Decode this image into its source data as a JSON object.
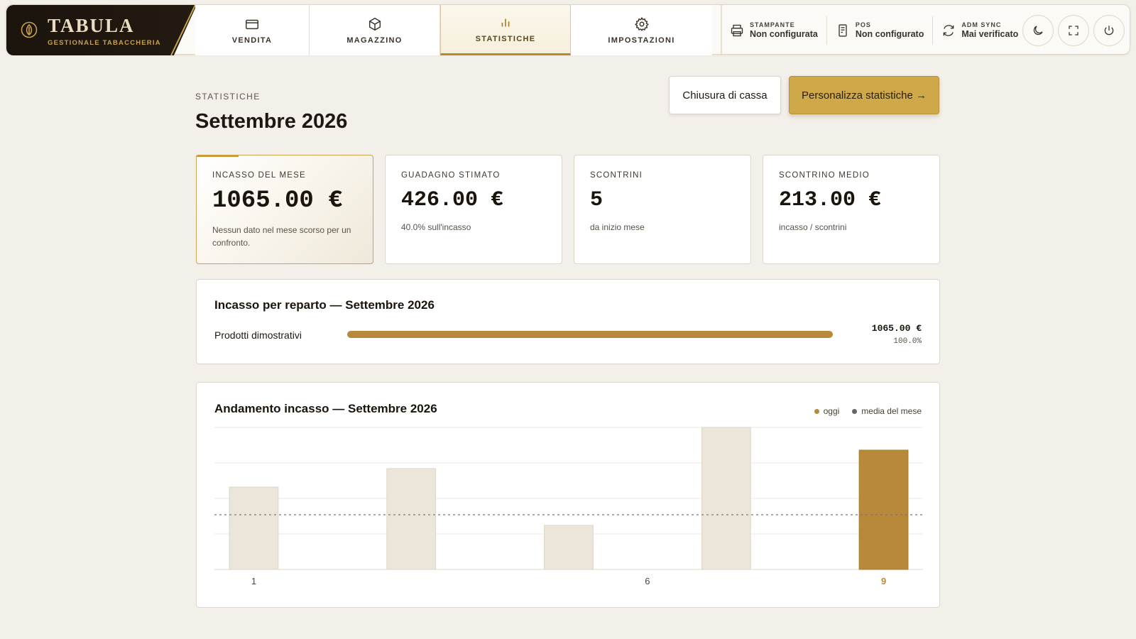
{
  "brand": {
    "title": "TABULA",
    "subtitle": "GESTIONALE TABACCHERIA"
  },
  "nav": {
    "tabs": [
      {
        "label": "VENDITA",
        "icon": "card-icon",
        "active": false
      },
      {
        "label": "MAGAZZINO",
        "icon": "box-icon",
        "active": false
      },
      {
        "label": "STATISTICHE",
        "icon": "bar-chart-icon",
        "active": true
      },
      {
        "label": "IMPOSTAZIONI",
        "icon": "gear-icon",
        "active": false
      }
    ]
  },
  "status": {
    "printer": {
      "key": "STAMPANTE",
      "value": "Non configurata",
      "icon": "printer-icon"
    },
    "pos": {
      "key": "POS",
      "value": "Non configurato",
      "icon": "pos-terminal-icon"
    },
    "adm": {
      "key": "ADM SYNC",
      "value": "Mai verificato",
      "icon": "sync-icon"
    }
  },
  "header_buttons": {
    "theme": "moon-icon",
    "fullscreen": "fullscreen-icon",
    "power": "power-icon"
  },
  "page": {
    "eyebrow": "STATISTICHE",
    "title": "Settembre 2026",
    "close_register_label": "Chiusura di cassa",
    "customize_label": "Personalizza statistiche →"
  },
  "kpis": [
    {
      "label": "INCASSO DEL MESE",
      "value": "1065.00 €",
      "sub": "Nessun dato nel mese scorso per un confronto."
    },
    {
      "label": "GUADAGNO STIMATO",
      "value": "426.00 €",
      "sub": "40.0% sull'incasso"
    },
    {
      "label": "SCONTRINI",
      "value": "5",
      "sub": "da inizio mese"
    },
    {
      "label": "SCONTRINO MEDIO",
      "value": "213.00 €",
      "sub": "incasso / scontrini"
    }
  ],
  "departments": {
    "title": "Incasso per reparto — Settembre 2026",
    "rows": [
      {
        "name": "Prodotti dimostrativi",
        "amount": "1065.00 €",
        "percent": "100.0%",
        "share": 1.0
      }
    ]
  },
  "trend": {
    "title": "Andamento incasso — Settembre 2026",
    "legend": {
      "today": "oggi",
      "average": "media del mese"
    }
  },
  "colors": {
    "accent": "#b8893a",
    "bar": "#ece5da",
    "average_dot": "#666666"
  },
  "chart_data": {
    "type": "bar",
    "x": [
      1,
      3,
      5,
      7,
      9
    ],
    "values": [
      0.58,
      0.71,
      0.31,
      1.0,
      0.84
    ],
    "highlight_x": 9,
    "average": 0.385,
    "tick_labels": [
      {
        "x": 1,
        "label": "1"
      },
      {
        "x": 6,
        "label": "6"
      },
      {
        "x": 9,
        "label": "9"
      }
    ],
    "xlim": [
      0.5,
      9.5
    ],
    "ylim": [
      0,
      1
    ],
    "grid": true
  }
}
